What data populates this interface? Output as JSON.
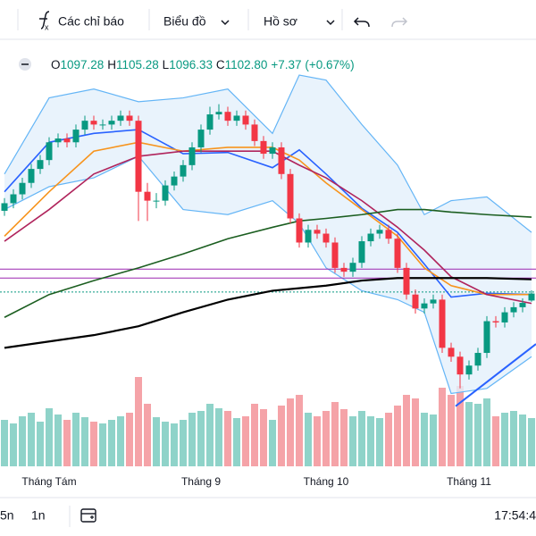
{
  "toolbar": {
    "items": [
      "Các chỉ báo",
      "Biểu đồ",
      "Hồ sơ"
    ]
  },
  "legend": {
    "o_label": "O",
    "o": "1097.28",
    "h_label": "H",
    "h": "1105.28",
    "l_label": "L",
    "l": "1096.33",
    "c_label": "C",
    "c": "1102.80",
    "change": "+7.37",
    "change_pct": "(+0.67%)"
  },
  "bottom": {
    "ranges": [
      "5n",
      "1n"
    ],
    "time": "17:54:4"
  },
  "chart_data": {
    "type": "candlestick",
    "open": [
      1168,
      1174,
      1181,
      1190,
      1201,
      1208,
      1222,
      1225,
      1222,
      1232,
      1239,
      1236,
      1236,
      1239,
      1243,
      1239,
      1183,
      1176,
      1176,
      1188,
      1195,
      1204,
      1218,
      1232,
      1244,
      1246,
      1239,
      1243,
      1236,
      1223,
      1213,
      1218,
      1197,
      1162,
      1143,
      1153,
      1150,
      1143,
      1123,
      1120,
      1127,
      1144,
      1150,
      1153,
      1146,
      1123,
      1102,
      1091,
      1095,
      1098,
      1060,
      1053,
      1039,
      1046,
      1056,
      1081,
      1080,
      1088,
      1092,
      1097.28
    ],
    "high": [
      1178,
      1185,
      1194,
      1205,
      1212,
      1226,
      1229,
      1229,
      1236,
      1243,
      1243,
      1240,
      1243,
      1247,
      1247,
      1243,
      1190,
      1182,
      1192,
      1199,
      1208,
      1222,
      1236,
      1250,
      1252,
      1250,
      1247,
      1247,
      1240,
      1227,
      1222,
      1222,
      1201,
      1166,
      1157,
      1157,
      1154,
      1147,
      1127,
      1131,
      1148,
      1154,
      1157,
      1157,
      1150,
      1127,
      1106,
      1099,
      1102,
      1102,
      1064,
      1057,
      1050,
      1060,
      1085,
      1085,
      1092,
      1096,
      1099,
      1105.28
    ],
    "low": [
      1164,
      1170,
      1177,
      1186,
      1197,
      1204,
      1218,
      1218,
      1218,
      1228,
      1232,
      1232,
      1232,
      1235,
      1235,
      1160,
      1160,
      1170,
      1172,
      1184,
      1191,
      1200,
      1214,
      1228,
      1240,
      1235,
      1235,
      1232,
      1219,
      1209,
      1209,
      1193,
      1158,
      1139,
      1139,
      1146,
      1139,
      1119,
      1116,
      1116,
      1123,
      1140,
      1146,
      1142,
      1119,
      1098,
      1087,
      1087,
      1091,
      1056,
      1049,
      1028,
      1035,
      1042,
      1052,
      1076,
      1076,
      1084,
      1088,
      1096.33
    ],
    "close": [
      1174,
      1181,
      1190,
      1201,
      1208,
      1222,
      1225,
      1222,
      1232,
      1239,
      1236,
      1236,
      1239,
      1243,
      1239,
      1183,
      1176,
      1176,
      1188,
      1195,
      1204,
      1218,
      1232,
      1244,
      1246,
      1239,
      1243,
      1236,
      1223,
      1213,
      1218,
      1197,
      1162,
      1143,
      1153,
      1150,
      1143,
      1123,
      1120,
      1127,
      1144,
      1150,
      1153,
      1146,
      1123,
      1102,
      1091,
      1095,
      1098,
      1060,
      1053,
      1039,
      1046,
      1056,
      1081,
      1080,
      1088,
      1092,
      1095.43,
      1102.8
    ],
    "volume": [
      520,
      480,
      560,
      600,
      500,
      650,
      580,
      520,
      600,
      550,
      500,
      480,
      520,
      560,
      600,
      1000,
      700,
      550,
      500,
      480,
      520,
      600,
      620,
      700,
      650,
      620,
      540,
      560,
      700,
      640,
      520,
      680,
      760,
      800,
      600,
      560,
      620,
      720,
      640,
      560,
      620,
      560,
      540,
      600,
      680,
      800,
      760,
      600,
      580,
      880,
      800,
      900,
      720,
      700,
      760,
      560,
      600,
      620,
      580,
      540
    ],
    "up_color": "#089981",
    "down_color": "#f23645",
    "volume_up_color": "#8fd3c9",
    "volume_down_color": "#f5a3a8",
    "xlim": [
      -0.5,
      59.5
    ],
    "ylim": [
      968,
      1306
    ],
    "vlim": [
      0,
      1200
    ],
    "xticks": [
      {
        "value": 5,
        "label": "Tháng Tám"
      },
      {
        "value": 22,
        "label": "Tháng 9"
      },
      {
        "value": 36,
        "label": "Tháng 10"
      },
      {
        "value": 52,
        "label": "Tháng 11"
      }
    ],
    "band": {
      "color": "#64b5f6",
      "fill": "#e3f0fb",
      "x": [
        0,
        5,
        10,
        15,
        20,
        25,
        30,
        33,
        36,
        40,
        44,
        47,
        50,
        54,
        59
      ],
      "upper": [
        1197,
        1257,
        1264,
        1254,
        1257,
        1264,
        1229,
        1275,
        1271,
        1236,
        1204,
        1165,
        1176,
        1179,
        1151
      ],
      "lower": [
        1169,
        1187,
        1194,
        1211,
        1169,
        1165,
        1176,
        1158,
        1123,
        1105,
        1098,
        1088,
        1024,
        1028,
        1053
      ]
    },
    "lines": [
      {
        "color": "#2962ff",
        "x": [
          0,
          5,
          10,
          15,
          20,
          25,
          30,
          33,
          36,
          40,
          44,
          47,
          50,
          54,
          59
        ],
        "values": [
          1183,
          1222,
          1229,
          1232,
          1213,
          1214,
          1202,
          1216,
          1197,
          1170,
          1151,
          1126,
          1100,
          1103,
          1102
        ]
      },
      {
        "color": "#f7941d",
        "x": [
          0,
          5,
          10,
          15,
          20,
          25,
          30,
          33,
          36,
          40,
          44,
          47,
          50,
          54,
          59
        ],
        "values": [
          1148,
          1183,
          1215,
          1222,
          1215,
          1218,
          1218,
          1208,
          1190,
          1169,
          1148,
          1123,
          1109,
          1102,
          1102
        ]
      },
      {
        "color": "#b0245c",
        "x": [
          0,
          5,
          10,
          15,
          20,
          25,
          30,
          33,
          36,
          40,
          44,
          47,
          50,
          54,
          59
        ],
        "values": [
          1144,
          1169,
          1197,
          1211,
          1215,
          1215,
          1215,
          1204,
          1194,
          1176,
          1155,
          1137,
          1116,
          1102,
          1095
        ]
      },
      {
        "color": "#1b5e20",
        "x": [
          0,
          5,
          10,
          15,
          20,
          25,
          30,
          33,
          36,
          40,
          44,
          47,
          50,
          54,
          59
        ],
        "values": [
          1084,
          1102,
          1113,
          1123,
          1134,
          1146,
          1155,
          1160,
          1162,
          1165,
          1169,
          1169,
          1167,
          1165,
          1163
        ]
      },
      {
        "color": "#000000",
        "x": [
          0,
          5,
          10,
          15,
          20,
          25,
          30,
          33,
          36,
          40,
          44,
          47,
          50,
          54,
          59
        ],
        "values": [
          1060,
          1065,
          1070,
          1077,
          1088,
          1098,
          1105,
          1107,
          1109,
          1113,
          1115,
          1115,
          1115,
          1115,
          1114
        ]
      }
    ],
    "hlines": [
      {
        "value": 1122,
        "color": "#9c27b0",
        "dash": false
      },
      {
        "value": 1115,
        "color": "#9c27b0",
        "dash": false
      },
      {
        "value": 1104,
        "color": "#089981",
        "dash": true
      }
    ],
    "trendline": {
      "color": "#2962ff",
      "x": [
        50.5,
        59.5
      ],
      "values": [
        1014,
        1063
      ]
    }
  }
}
